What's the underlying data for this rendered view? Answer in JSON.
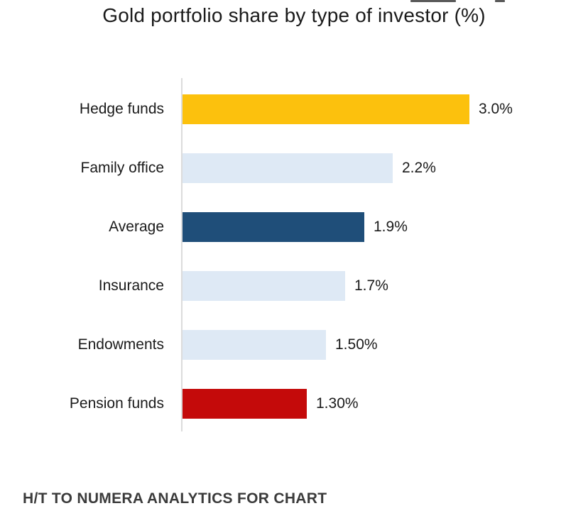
{
  "title": "Gold portfolio share by type of investor (%)",
  "footer": "H/T TO NUMERA ANALYTICS FOR CHART",
  "colors": {
    "gold": "#FCC10D",
    "light_blue": "#DEE9F5",
    "navy": "#1F4E79",
    "red": "#C40A0A",
    "axis_line": "#DCDCDC",
    "label_text": "#1A1A1A",
    "footer_text": "#3B3B3B",
    "background": "#FFFFFF"
  },
  "chart_data": {
    "type": "bar",
    "orientation": "horizontal",
    "title": "Gold portfolio share by type of investor (%)",
    "categories": [
      "Hedge funds",
      "Family office",
      "Average",
      "Insurance",
      "Endowments",
      "Pension funds"
    ],
    "values": [
      3.0,
      2.2,
      1.9,
      1.7,
      1.5,
      1.3
    ],
    "value_labels": [
      "3.0%",
      "2.2%",
      "1.9%",
      "1.7%",
      "1.50%",
      "1.30%"
    ],
    "bar_colors": [
      "#FCC10D",
      "#DEE9F5",
      "#1F4E79",
      "#DEE9F5",
      "#DEE9F5",
      "#C40A0A"
    ],
    "xlabel": "",
    "ylabel": "",
    "xlim": [
      0,
      3.0
    ],
    "grid": false,
    "legend": false,
    "value_labels_position": "right-of-bar"
  }
}
